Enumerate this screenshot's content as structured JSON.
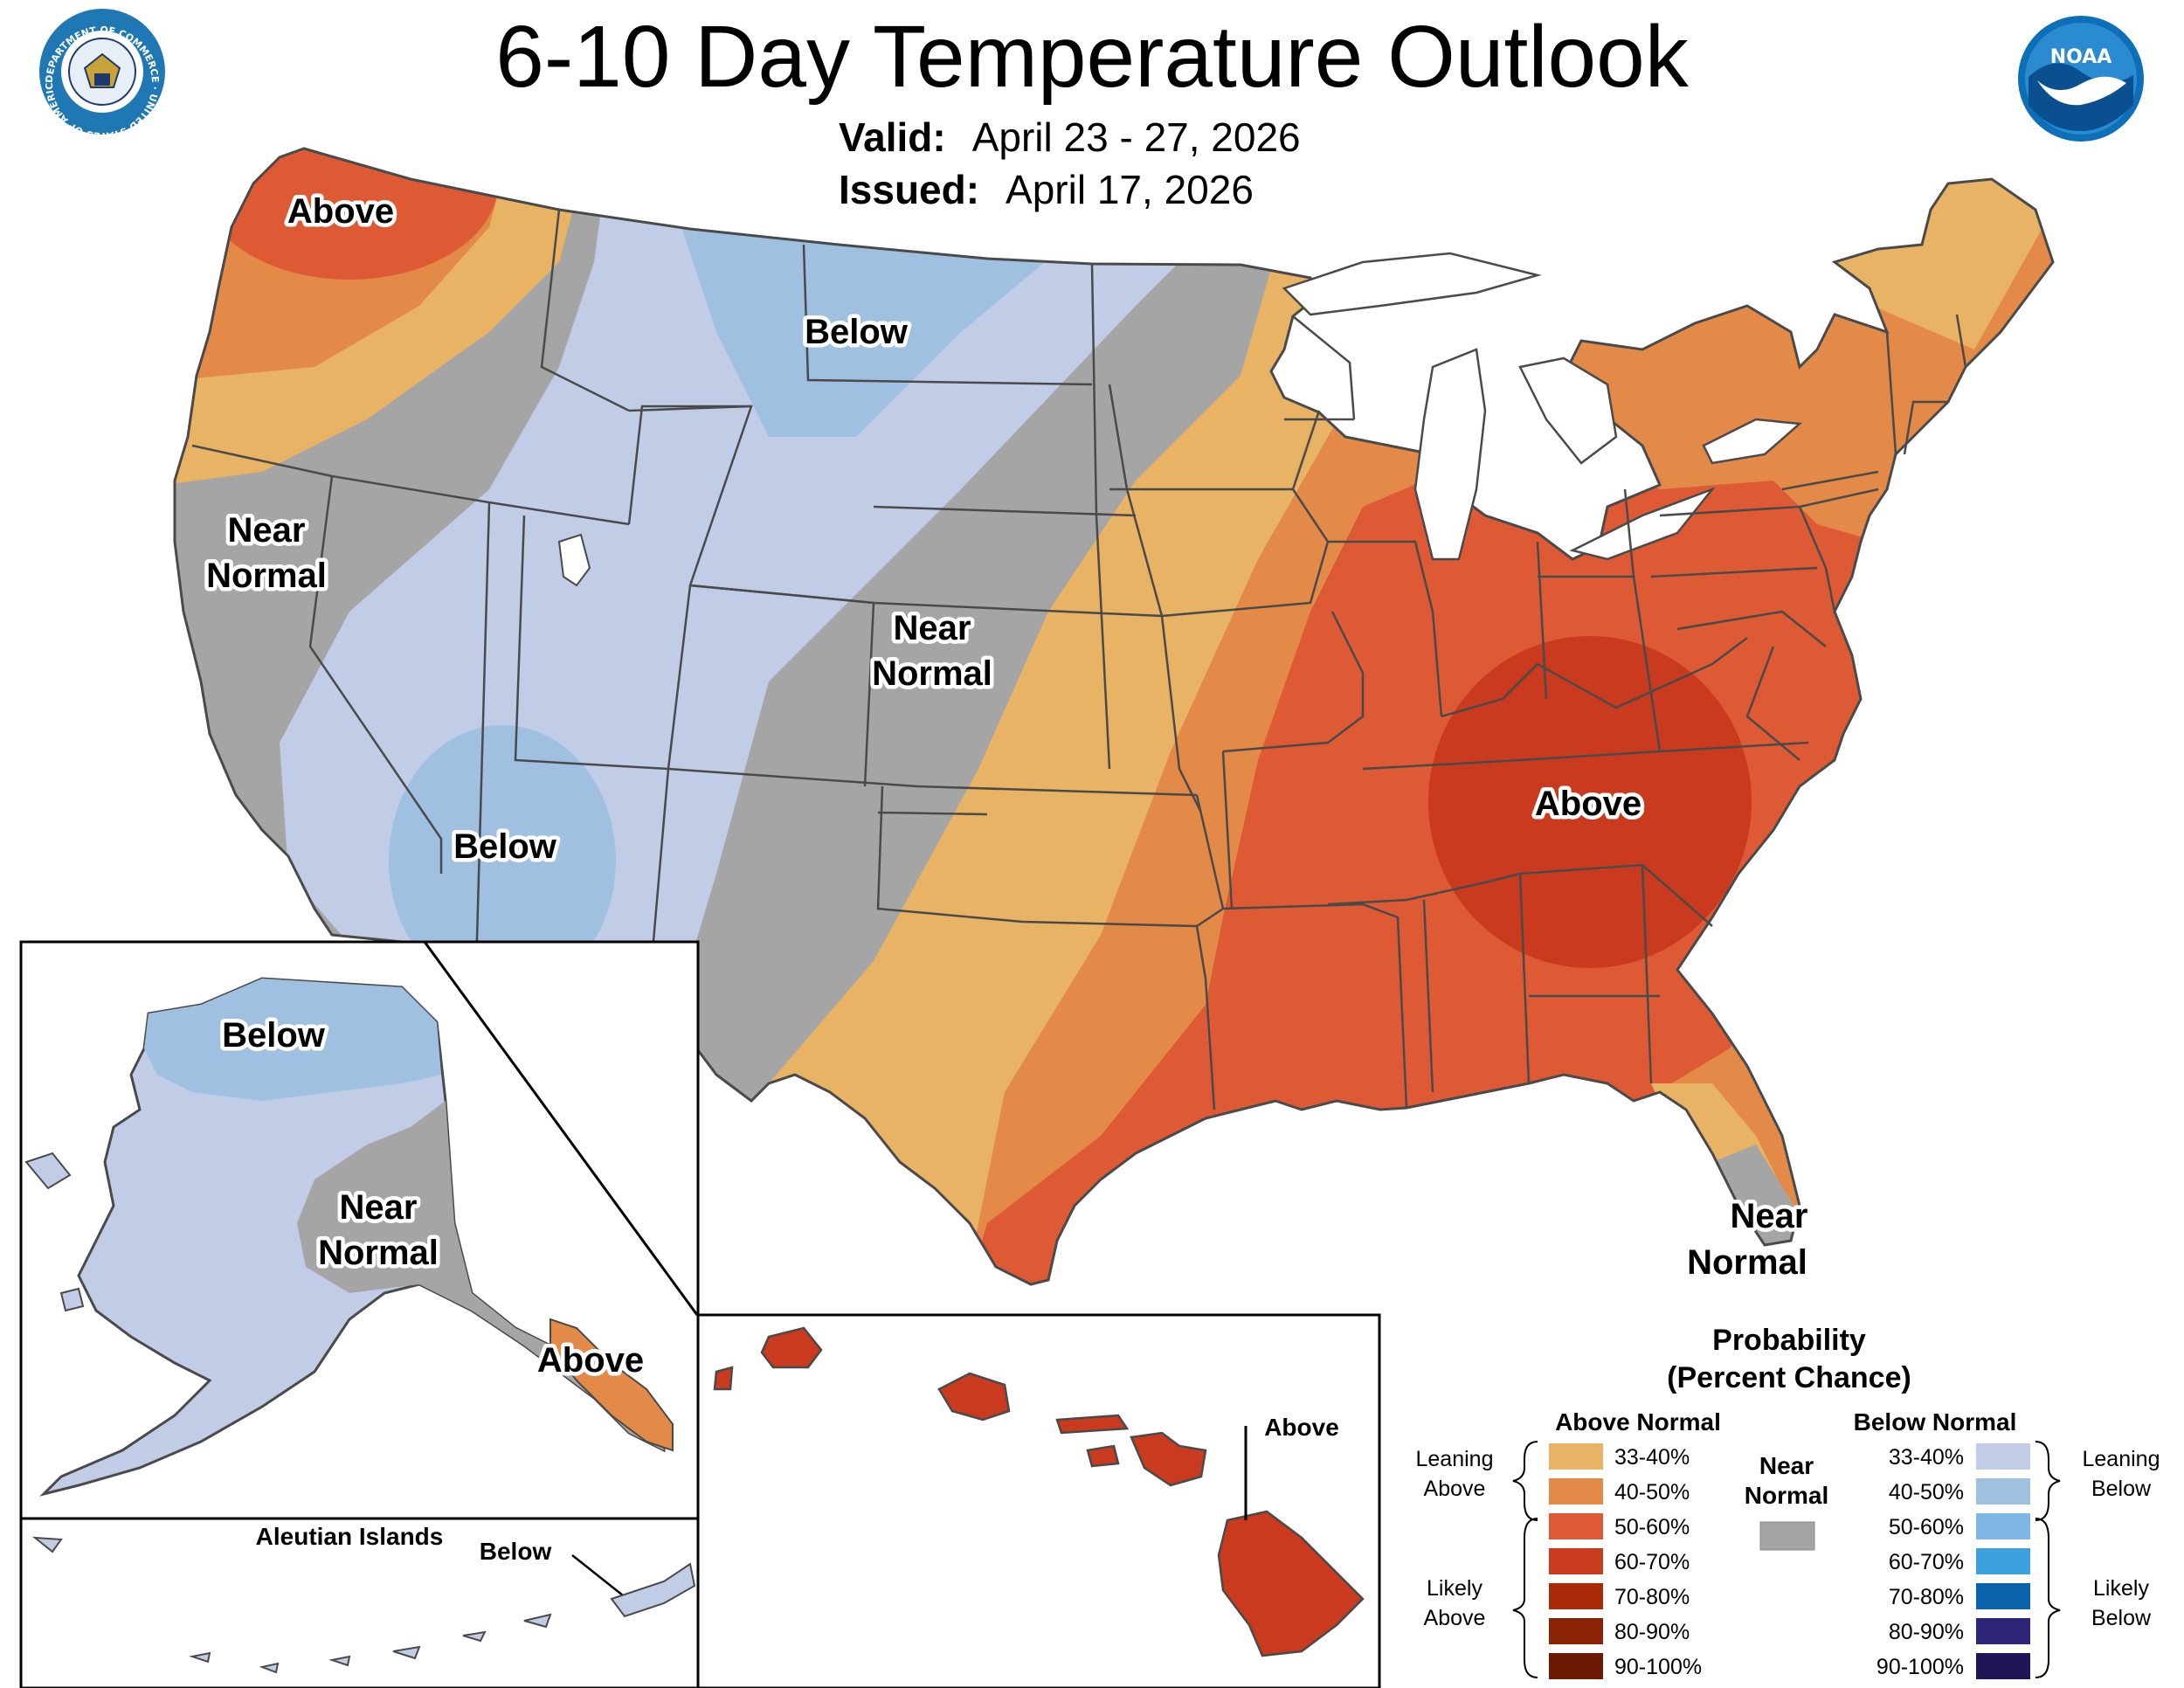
{
  "header": {
    "title": "6-10 Day Temperature Outlook",
    "valid_label": "Valid:",
    "valid_value": "April 23 - 27, 2026",
    "issued_label": "Issued:",
    "issued_value": "April 17, 2026"
  },
  "logos": {
    "commerce_text": "DEPARTMENT OF COMMERCE · UNITED STATES OF AMERICA",
    "noaa_text": "NOAA"
  },
  "map_labels": {
    "nw_above": "Above",
    "north_below": "Below",
    "west_near_1": "Near",
    "west_near_2": "Normal",
    "central_near_1": "Near",
    "central_near_2": "Normal",
    "sw_below": "Below",
    "se_above": "Above",
    "fl_near_1": "Near",
    "fl_near_2": "Normal"
  },
  "alaska": {
    "below": "Below",
    "near_1": "Near",
    "near_2": "Normal",
    "above": "Above",
    "aleutian_title": "Aleutian Islands",
    "aleutian_below": "Below"
  },
  "hawaii": {
    "above": "Above"
  },
  "legend": {
    "title_1": "Probability",
    "title_2": "(Percent Chance)",
    "above_header": "Above Normal",
    "below_header": "Below Normal",
    "near_1": "Near",
    "near_2": "Normal",
    "leaning_above_1": "Leaning",
    "leaning_above_2": "Above",
    "likely_above_1": "Likely",
    "likely_above_2": "Above",
    "leaning_below_1": "Leaning",
    "leaning_below_2": "Below",
    "likely_below_1": "Likely",
    "likely_below_2": "Below",
    "ranges": [
      "33-40%",
      "40-50%",
      "50-60%",
      "60-70%",
      "70-80%",
      "80-90%",
      "90-100%"
    ],
    "above_colors": [
      "#e9b365",
      "#e48a48",
      "#dd5a34",
      "#c93a1f",
      "#a92b0a",
      "#8a2205",
      "#6a1a03"
    ],
    "below_colors": [
      "#c1cce7",
      "#9fc0e1",
      "#7fb6e4",
      "#3fa0df",
      "#0b64ab",
      "#2c2578",
      "#1f1655"
    ],
    "near_color": "#a5a5a5"
  }
}
